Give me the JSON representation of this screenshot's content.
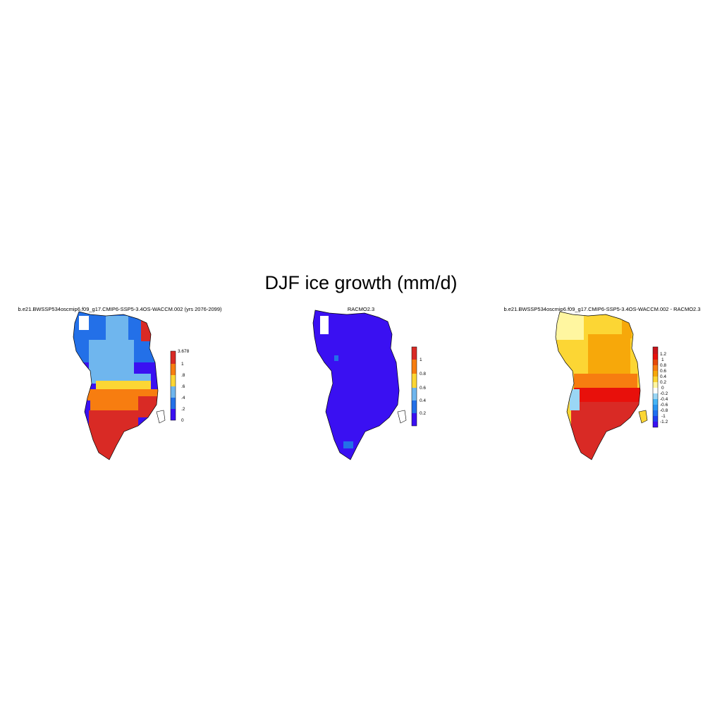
{
  "figure": {
    "title": "DJF ice growth (mm/d)"
  },
  "panels": [
    {
      "title": "b.e21.BWSSP534oscmip6.f09_g17.CMIP6-SSP5-3.4OS-WACCM.002 (yrs 2076-2099)",
      "colorbar": {
        "colors": [
          "#3a10f2",
          "#2370e8",
          "#6fb6ee",
          "#fcd634",
          "#f77d10",
          "#d92a25"
        ],
        "labels": [
          "0",
          ".2",
          ".4",
          ".6",
          ".8",
          "1",
          "3.678"
        ]
      }
    },
    {
      "title": "RACMO2.3",
      "colorbar": {
        "colors": [
          "#3a10f2",
          "#2370e8",
          "#6fb6ee",
          "#fcd634",
          "#f77d10",
          "#d92a25"
        ],
        "labels": [
          "0.2",
          "0.4",
          "0.6",
          "0.8",
          "1"
        ]
      }
    },
    {
      "title": "b.e21.BWSSP534oscmip6.f09_g17.CMIP6-SSP5-3.4OS-WACCM.002 - RACMO2.3",
      "colorbar": {
        "colors": [
          "#3a10f2",
          "#1f3ff0",
          "#1f70f0",
          "#2a95f0",
          "#47b5f5",
          "#9ad6f5",
          "#ffffff",
          "#fff6a0",
          "#fcd634",
          "#f7a80a",
          "#f77d10",
          "#e64a0a",
          "#e8100b",
          "#c8141b"
        ],
        "labels": [
          "-1.2",
          "-1",
          "-0.8",
          "-0.6",
          "-0.4",
          "-0.2",
          "0",
          "0.2",
          "0.4",
          "0.6",
          "0.8",
          "1",
          "1.2"
        ]
      }
    }
  ]
}
